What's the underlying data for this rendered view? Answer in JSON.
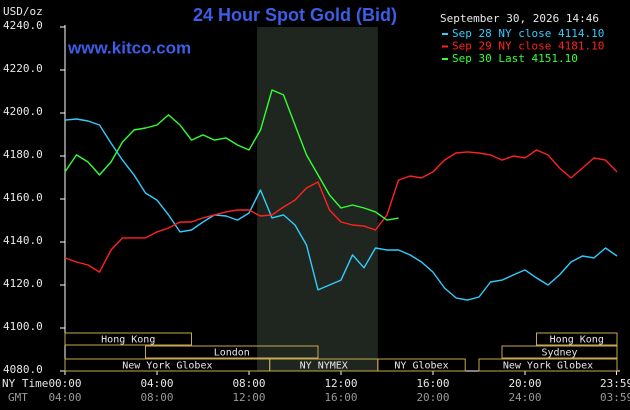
{
  "chart_data": {
    "type": "line",
    "title": "24 Hour Spot Gold (Bid)",
    "site": "www.kitco.com",
    "y_unit": "USD/oz",
    "timestamp": "September 30, 2026 14:46",
    "x_rows": [
      "NY Time",
      "GMT"
    ],
    "x": [
      0,
      0.5,
      1,
      1.5,
      2,
      2.5,
      3,
      3.5,
      4,
      4.5,
      5,
      5.5,
      6,
      6.5,
      7,
      7.5,
      8,
      8.5,
      9,
      9.5,
      10,
      10.5,
      11,
      11.5,
      12,
      12.5,
      13,
      13.5,
      14,
      14.5,
      15,
      15.5,
      16,
      16.5,
      17,
      17.5,
      18,
      18.5,
      19,
      19.5,
      20,
      20.5,
      21,
      21.5,
      22,
      22.5,
      23,
      23.5,
      24
    ],
    "xlim": [
      0,
      24
    ],
    "xticks": [
      {
        "value": 0,
        "label": "00:00"
      },
      {
        "value": 4,
        "label": "04:00"
      },
      {
        "value": 8,
        "label": "08:00"
      },
      {
        "value": 12,
        "label": "12:00"
      },
      {
        "value": 16,
        "label": "16:00"
      },
      {
        "value": 20,
        "label": "20:00"
      },
      {
        "value": 23.98,
        "label": "23:59"
      }
    ],
    "gmt_tick_labels": [
      "04:00",
      "08:00",
      "12:00",
      "16:00",
      "20:00",
      "24:00",
      "03:59"
    ],
    "ylim": [
      4080,
      4240
    ],
    "yticks": [
      {
        "value": 4080,
        "label": "4080.0"
      },
      {
        "value": 4100,
        "label": "4100.0"
      },
      {
        "value": 4120,
        "label": "4120.0"
      },
      {
        "value": 4140,
        "label": "4140.0"
      },
      {
        "value": 4160,
        "label": "4160.0"
      },
      {
        "value": 4180,
        "label": "4180.0"
      },
      {
        "value": 4200,
        "label": "4200.0"
      },
      {
        "value": 4220,
        "label": "4220.0"
      },
      {
        "value": 4240,
        "label": "4240.0"
      }
    ],
    "shaded_region": [
      8.35,
      13.6
    ],
    "shaded_color": "#1f261f",
    "sessions": [
      {
        "label": "Hong Kong",
        "row": 0,
        "start": 0,
        "end": 5.5
      },
      {
        "label": "Hong Kong",
        "row": 0,
        "start": 20.5,
        "end": 24
      },
      {
        "label": "London",
        "row": 1,
        "start": 3.5,
        "end": 11
      },
      {
        "label": "Sydney",
        "row": 1,
        "start": 19,
        "end": 24
      },
      {
        "label": "New York Globex",
        "row": 2,
        "start": 0,
        "end": 8.9
      },
      {
        "label": "NY NYMEX",
        "row": 2,
        "start": 8.9,
        "end": 13.6
      },
      {
        "label": "NY Globex",
        "row": 2,
        "start": 13.6,
        "end": 17.4
      },
      {
        "label": "New York Globex",
        "row": 2,
        "start": 18,
        "end": 24
      }
    ],
    "series": [
      {
        "name": "Sep 28 NY close 4114.10",
        "color": "#33ccff",
        "values": [
          4196.7,
          4197.2,
          4196.3,
          4194.4,
          4186.0,
          4178.1,
          4171.2,
          4162.8,
          4159.5,
          4152.6,
          4144.7,
          4145.6,
          4149.3,
          4152.6,
          4152.1,
          4150.2,
          4153.5,
          4164.2,
          4151.2,
          4152.6,
          4147.9,
          4138.6,
          4117.7,
          4120.0,
          4122.3,
          4134.0,
          4128.0,
          4137.2,
          4136.3,
          4136.3,
          4134.0,
          4130.7,
          4126.0,
          4118.6,
          4114.0,
          4113.0,
          4114.4,
          4121.4,
          4122.3,
          4124.7,
          4127.0,
          4123.3,
          4120.0,
          4124.7,
          4130.7,
          4133.5,
          4132.6,
          4137.2,
          4133.5
        ]
      },
      {
        "name": "Sep 29 NY close 4181.10",
        "color": "#ff2222",
        "values": [
          4132.6,
          4130.7,
          4129.3,
          4126.0,
          4136.3,
          4141.9,
          4141.9,
          4141.9,
          4144.7,
          4146.5,
          4149.3,
          4149.3,
          4151.2,
          4152.6,
          4154.0,
          4154.9,
          4154.9,
          4152.1,
          4152.6,
          4156.3,
          4159.5,
          4165.1,
          4167.9,
          4154.9,
          4149.3,
          4147.9,
          4147.4,
          4145.6,
          4152.6,
          4168.8,
          4170.7,
          4169.8,
          4172.6,
          4178.1,
          4181.4,
          4181.9,
          4181.4,
          4180.5,
          4178.1,
          4180.0,
          4179.1,
          4182.8,
          4180.5,
          4174.4,
          4169.8,
          4174.4,
          4179.1,
          4178.1,
          4172.6
        ]
      },
      {
        "name": "Sep 30 Last 4151.10",
        "color": "#33ff33",
        "values": [
          4172.6,
          4180.5,
          4177.2,
          4171.2,
          4177.2,
          4186.5,
          4192.1,
          4193.0,
          4194.4,
          4199.1,
          4194.4,
          4187.4,
          4189.8,
          4187.4,
          4188.4,
          4185.1,
          4182.8,
          4192.1,
          4210.7,
          4208.4,
          4194.4,
          4180.5,
          4171.2,
          4161.9,
          4155.8,
          4157.2,
          4155.8,
          4154.0,
          4150.2,
          4151.1,
          null,
          null,
          null,
          null,
          null,
          null,
          null,
          null,
          null,
          null,
          null,
          null,
          null,
          null,
          null,
          null,
          null,
          null,
          null
        ]
      }
    ]
  }
}
